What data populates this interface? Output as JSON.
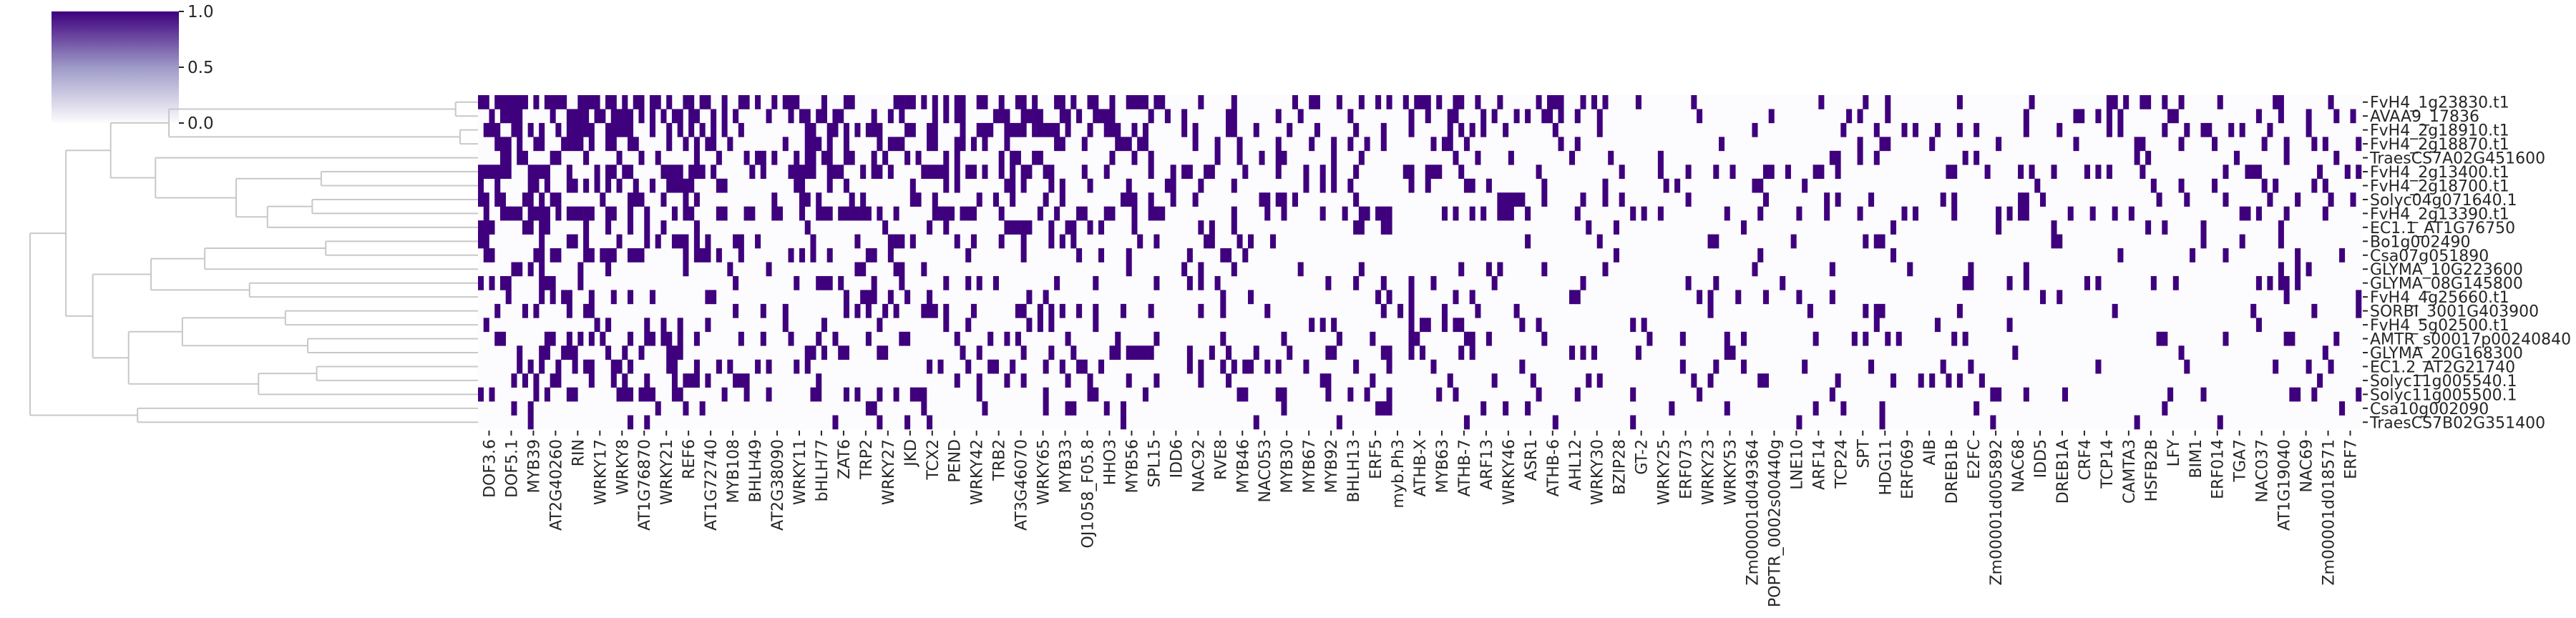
{
  "chart_data": {
    "type": "heatmap",
    "title": "",
    "xlabel": "",
    "ylabel": "",
    "colormap": "Purples",
    "colors": {
      "low": "#fcfbfd",
      "high": "#3f007d",
      "dendrogram": "#c8c8c8",
      "tick": "#262626"
    },
    "colorbar": {
      "vmin": 0.0,
      "vmax": 1.0,
      "ticks": [
        "1.0",
        "0.5",
        "0.0"
      ],
      "placement": "top-left"
    },
    "dendrogram": "left",
    "rows": [
      "FvH4_1g23830.t1",
      "AVAA9_17836",
      "FvH4_2g18910.t1",
      "FvH4_2g18870.t1",
      "TraesCS7A02G451600",
      "FvH4_2g13400.t1",
      "FvH4_2g18700.t1",
      "Solyc04g071640.1",
      "FvH4_2g13390.t1",
      "EC1.1_AT1G76750",
      "Bo1g002490",
      "Csa07g051890",
      "GLYMA_10G223600",
      "GLYMA_08G145800",
      "FvH4_4g25660.t1",
      "SORBI_3001G403900",
      "FvH4_5g02500.t1",
      "AMTR_s00017p00240840",
      "GLYMA_20G168300",
      "EC1.2_AT2G21740",
      "Solyc11g005540.1",
      "Solyc11g005500.1",
      "Csa10g002090",
      "TraesCS7B02G351400"
    ],
    "column_tick_labels": [
      "DOF3.6",
      "DOF5.1",
      "MYB39",
      "AT2G40260",
      "RIN",
      "WRKY17",
      "WRKY8",
      "AT1G76870",
      "WRKY21",
      "REF6",
      "AT1G72740",
      "MYB108",
      "BHLH49",
      "AT2G38090",
      "WRKY11",
      "bHLH77",
      "ZAT6",
      "TRP2",
      "WRKY27",
      "JKD",
      "TCX2",
      "PEND",
      "WRKY42",
      "TRB2",
      "AT3G46070",
      "WRKY65",
      "MYB33",
      "OJ1058_F05.8",
      "HHO3",
      "MYB56",
      "SPL15",
      "IDD6",
      "NAC92",
      "RVE8",
      "MYB46",
      "NAC053",
      "MYB30",
      "MYB67",
      "MYB92",
      "BHLH13",
      "ERF5",
      "myb.Ph3",
      "ATHB-X",
      "MYB63",
      "ATHB-7",
      "ARF13",
      "WRKY46",
      "ASR1",
      "ATHB-6",
      "AHL12",
      "WRKY30",
      "BZIP28",
      "GT-2",
      "WRKY25",
      "ERF073",
      "WRKY23",
      "WRKY53",
      "Zm00001d049364",
      "POPTR_0002s00440g",
      "LNE10",
      "ARF14",
      "TCP24",
      "SPT",
      "HDG11",
      "ERF069",
      "AIB",
      "DREB1B",
      "E2FC",
      "Zm00001d005892",
      "NAC68",
      "IDD5",
      "DREB1A",
      "CRF4",
      "TCP14",
      "CAMTA3",
      "HSFB2B",
      "LFY",
      "BIM1",
      "ERF014",
      "TGA7",
      "NAC037",
      "AT1G19040",
      "NAC69",
      "Zm00001d018571",
      "ERF7"
    ],
    "n_columns": 340,
    "density": [
      0.62,
      0.52,
      0.58,
      0.44,
      0.36,
      0.57,
      0.47,
      0.43,
      0.55,
      0.22,
      0.24,
      0.22,
      0.2,
      0.25,
      0.21,
      0.22,
      0.23,
      0.35,
      0.26,
      0.3,
      0.31,
      0.34,
      0.18,
      0.12
    ]
  }
}
